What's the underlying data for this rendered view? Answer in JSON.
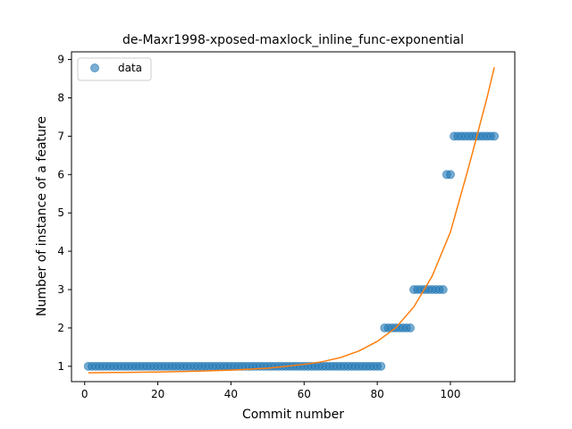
{
  "chart_data": {
    "type": "scatter",
    "title": "de-Maxr1998-xposed-maxlock_inline_func-exponential",
    "xlabel": "Commit number",
    "ylabel": "Number of instance of a feature",
    "xlim": [
      -3.6,
      117.6
    ],
    "ylim": [
      0.6,
      9.2
    ],
    "xticks": [
      0,
      20,
      40,
      60,
      80,
      100
    ],
    "yticks": [
      1,
      2,
      3,
      4,
      5,
      6,
      7,
      8,
      9
    ],
    "grid": false,
    "legend": {
      "position": "top-left",
      "entries": [
        "data"
      ]
    },
    "series": [
      {
        "name": "data",
        "kind": "scatter",
        "color": "#1f77b4",
        "runs": [
          {
            "x_from": 1,
            "x_to": 81,
            "y": 1
          },
          {
            "x_from": 82,
            "x_to": 89,
            "y": 2
          },
          {
            "x_from": 90,
            "x_to": 98,
            "y": 3
          },
          {
            "x_from": 99,
            "x_to": 100,
            "y": 6
          },
          {
            "x_from": 101,
            "x_to": 112,
            "y": 7
          }
        ]
      },
      {
        "kind": "line",
        "color": "#ff7f0e",
        "x": [
          1,
          10,
          20,
          30,
          40,
          50,
          60,
          65,
          70,
          75,
          80,
          85,
          90,
          95,
          100,
          105,
          110,
          112
        ],
        "y": [
          0.83,
          0.84,
          0.85,
          0.87,
          0.9,
          0.95,
          1.05,
          1.12,
          1.23,
          1.4,
          1.65,
          2.0,
          2.55,
          3.35,
          4.5,
          6.2,
          8.0,
          8.8
        ]
      }
    ]
  }
}
